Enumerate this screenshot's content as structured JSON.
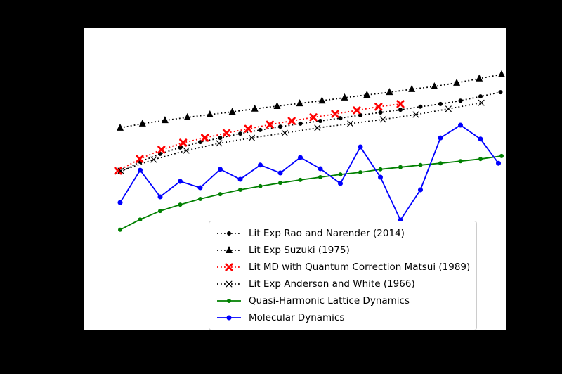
{
  "figure": {
    "background_color": "#000000",
    "plot_background_color": "#ffffff"
  },
  "chart_data": {
    "type": "line",
    "title": "",
    "xlabel": "",
    "ylabel": "",
    "xlim": [
      0,
      2000
    ],
    "ylim": [
      0,
      10
    ],
    "grid": false,
    "legend_position": "lower right",
    "series": [
      {
        "name": "Lit Exp Rao and Narender (2014)",
        "color": "#000000",
        "linestyle": "dotted",
        "marker": "circle",
        "marker_size": 3,
        "x": [
          170,
          265,
          360,
          455,
          550,
          645,
          740,
          835,
          930,
          1025,
          1120,
          1215,
          1310,
          1405,
          1500,
          1595,
          1690,
          1785,
          1880,
          1975
        ],
        "y": [
          5.23,
          5.58,
          5.84,
          6.05,
          6.23,
          6.37,
          6.51,
          6.63,
          6.74,
          6.84,
          6.93,
          7.02,
          7.12,
          7.21,
          7.3,
          7.4,
          7.49,
          7.6,
          7.74,
          7.88
        ]
      },
      {
        "name": "Lit Exp Suzuki (1975)",
        "color": "#000000",
        "linestyle": "dotted",
        "marker": "triangle",
        "marker_size": 5,
        "x": [
          170,
          276,
          383,
          489,
          596,
          702,
          809,
          915,
          1022,
          1128,
          1235,
          1341,
          1448,
          1554,
          1661,
          1767,
          1874,
          1980
        ],
        "y": [
          6.7,
          6.84,
          6.95,
          7.05,
          7.14,
          7.23,
          7.33,
          7.42,
          7.51,
          7.6,
          7.7,
          7.79,
          7.88,
          7.98,
          8.07,
          8.19,
          8.33,
          8.47
        ]
      },
      {
        "name": "Lit MD with Quantum Correction Matsui (1989)",
        "color": "#ff0000",
        "linestyle": "dotted",
        "marker": "X",
        "marker_size": 4.2,
        "x": [
          160,
          263,
          366,
          469,
          572,
          675,
          778,
          881,
          984,
          1087,
          1190,
          1293,
          1396,
          1500
        ],
        "y": [
          5.28,
          5.67,
          5.98,
          6.21,
          6.37,
          6.53,
          6.67,
          6.81,
          6.93,
          7.05,
          7.16,
          7.28,
          7.4,
          7.49
        ]
      },
      {
        "name": "Lit Exp Anderson and White (1966)",
        "color": "#000000",
        "linestyle": "dotted",
        "marker": "x",
        "marker_size": 3.8,
        "x": [
          173,
          329,
          484,
          640,
          795,
          951,
          1106,
          1262,
          1417,
          1573,
          1728,
          1884
        ],
        "y": [
          5.28,
          5.65,
          5.95,
          6.19,
          6.37,
          6.53,
          6.7,
          6.84,
          6.98,
          7.14,
          7.33,
          7.53
        ]
      },
      {
        "name": "Quasi-Harmonic Lattice Dynamics",
        "color": "#008000",
        "linestyle": "solid",
        "marker": "circle",
        "marker_size": 3,
        "x": [
          170,
          265,
          360,
          455,
          550,
          645,
          740,
          835,
          930,
          1025,
          1120,
          1215,
          1310,
          1405,
          1500,
          1595,
          1690,
          1785,
          1880,
          1980
        ],
        "y": [
          3.33,
          3.67,
          3.95,
          4.16,
          4.35,
          4.51,
          4.65,
          4.77,
          4.88,
          4.98,
          5.07,
          5.16,
          5.23,
          5.33,
          5.4,
          5.47,
          5.53,
          5.6,
          5.67,
          5.77
        ]
      },
      {
        "name": "Molecular Dynamics",
        "color": "#0000ff",
        "linestyle": "solid",
        "marker": "circle",
        "marker_size": 3.5,
        "x": [
          170,
          265,
          360,
          455,
          550,
          645,
          740,
          835,
          930,
          1025,
          1120,
          1215,
          1310,
          1405,
          1500,
          1595,
          1690,
          1785,
          1880,
          1965
        ],
        "y": [
          4.23,
          5.3,
          4.42,
          4.93,
          4.72,
          5.33,
          5.0,
          5.47,
          5.21,
          5.72,
          5.35,
          4.86,
          6.07,
          5.07,
          3.65,
          4.65,
          6.37,
          6.79,
          6.33,
          5.53
        ]
      }
    ]
  }
}
